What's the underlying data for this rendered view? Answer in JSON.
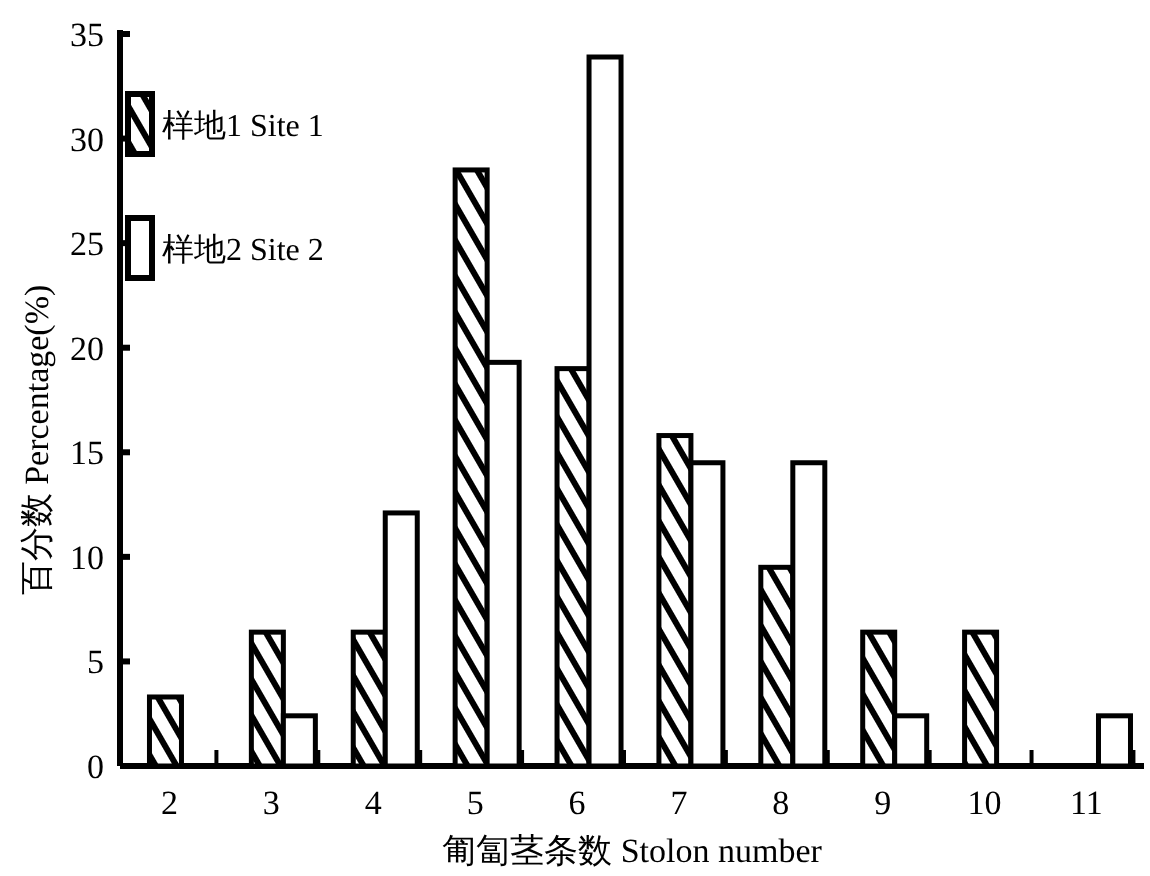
{
  "chart_data": {
    "type": "bar",
    "xlabel": "匍匐茎条数 Stolon number",
    "ylabel": "百分数 Percentage(%)",
    "categories": [
      "2",
      "3",
      "4",
      "5",
      "6",
      "7",
      "8",
      "9",
      "10",
      "11"
    ],
    "series": [
      {
        "name": "样地1 Site 1",
        "color": "#000000",
        "values": [
          3.3,
          6.4,
          6.4,
          28.5,
          19.0,
          15.8,
          9.5,
          6.4,
          6.4,
          null
        ]
      },
      {
        "name": "样地2 Site 2",
        "color": "#ffffff",
        "values": [
          null,
          2.4,
          12.1,
          19.3,
          33.9,
          14.5,
          14.5,
          2.4,
          null,
          2.4
        ]
      }
    ],
    "ylim": [
      0,
      35
    ],
    "yticks": [
      0,
      5,
      10,
      15,
      20,
      25,
      30,
      35
    ],
    "legend": "top left"
  }
}
